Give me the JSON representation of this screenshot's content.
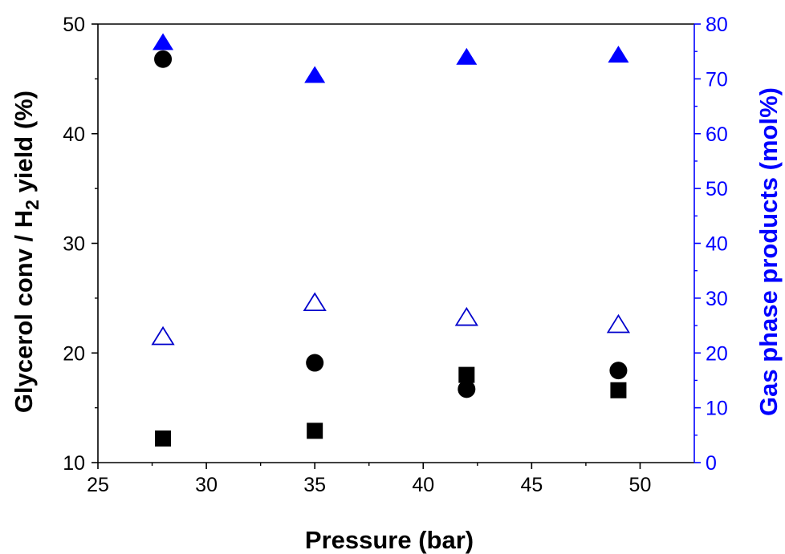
{
  "chart_data": {
    "type": "scatter",
    "title": "",
    "xlabel": "Pressure (bar)",
    "ylabel_left": {
      "before": "Glycerol conv / H",
      "subscript": "2",
      "after": " yield (%)"
    },
    "ylabel_right": "Gas phase products (mol%)",
    "xlim": [
      25,
      52.5
    ],
    "ylim_left": [
      10,
      50
    ],
    "ylim_right": [
      0,
      80
    ],
    "x_ticks": [
      25,
      30,
      35,
      40,
      45,
      50
    ],
    "y_left_ticks": [
      10,
      20,
      30,
      40,
      50
    ],
    "y_right_ticks": [
      0,
      10,
      20,
      30,
      40,
      50,
      60,
      70,
      80
    ],
    "grid": false,
    "legend": "none",
    "colors": {
      "axis_left": "#000000",
      "axis_right": "#0000ff",
      "series_black": "#000000",
      "series_blue": "#0000ff",
      "series_blue_outline": "#0000cc"
    },
    "series": [
      {
        "marker": "circle",
        "fill": "filled",
        "color": "#000000",
        "axis": "left",
        "points": [
          {
            "x": 28,
            "y": 46.8
          },
          {
            "x": 35,
            "y": 19.1
          },
          {
            "x": 42,
            "y": 16.7
          },
          {
            "x": 49,
            "y": 18.4
          }
        ]
      },
      {
        "marker": "square",
        "fill": "filled",
        "color": "#000000",
        "axis": "left",
        "points": [
          {
            "x": 28,
            "y": 12.2
          },
          {
            "x": 35,
            "y": 12.9
          },
          {
            "x": 42,
            "y": 18.0
          },
          {
            "x": 49,
            "y": 16.6
          }
        ]
      },
      {
        "marker": "triangle",
        "fill": "filled",
        "color": "#0000ff",
        "axis": "right",
        "points": [
          {
            "x": 28,
            "y": 76.5
          },
          {
            "x": 35,
            "y": 70.5
          },
          {
            "x": 42,
            "y": 73.8
          },
          {
            "x": 49,
            "y": 74.2
          }
        ]
      },
      {
        "marker": "triangle",
        "fill": "hollow",
        "color": "#0000cc",
        "axis": "right",
        "points": [
          {
            "x": 28,
            "y": 22.8
          },
          {
            "x": 35,
            "y": 29.0
          },
          {
            "x": 42,
            "y": 26.3
          },
          {
            "x": 49,
            "y": 25.0
          }
        ]
      }
    ]
  }
}
